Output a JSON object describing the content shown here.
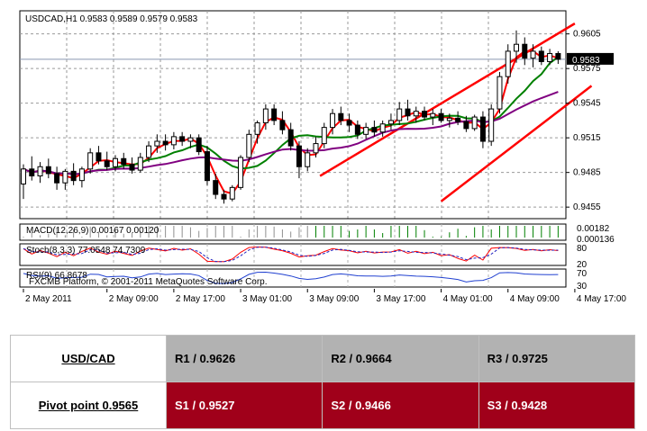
{
  "chart_data": {
    "type": "candlestick",
    "header": "USDCAD,H1  0.9583 0.9589 0.9579 0.9583",
    "current_price_label": "0.9583",
    "current_price": 0.9583,
    "ylim": [
      0.9445,
      0.9625
    ],
    "y_ticks": [
      {
        "v": 0.9605,
        "label": "0.9605"
      },
      {
        "v": 0.9575,
        "label": "0.9575"
      },
      {
        "v": 0.9545,
        "label": "0.9545"
      },
      {
        "v": 0.9515,
        "label": "0.9515"
      },
      {
        "v": 0.9485,
        "label": "0.9485"
      },
      {
        "v": 0.9455,
        "label": "0.9455"
      }
    ],
    "x_ticks": [
      {
        "i": 0,
        "label": "2 May 2011"
      },
      {
        "i": 10,
        "label": "2 May 09:00"
      },
      {
        "i": 18,
        "label": "2 May 17:00"
      },
      {
        "i": 26,
        "label": "3 May 01:00"
      },
      {
        "i": 34,
        "label": "3 May 09:00"
      },
      {
        "i": 42,
        "label": "3 May 17:00"
      },
      {
        "i": 50,
        "label": "4 May 01:00"
      },
      {
        "i": 58,
        "label": "4 May 09:00"
      },
      {
        "i": 66,
        "label": "4 May 17:00"
      }
    ],
    "candles": [
      [
        0.9475,
        0.9492,
        0.9462,
        0.9488
      ],
      [
        0.9488,
        0.9499,
        0.9478,
        0.9482
      ],
      [
        0.9482,
        0.9494,
        0.9476,
        0.949
      ],
      [
        0.949,
        0.9497,
        0.948,
        0.9484
      ],
      [
        0.9484,
        0.949,
        0.947,
        0.9476
      ],
      [
        0.9476,
        0.9488,
        0.947,
        0.9486
      ],
      [
        0.9486,
        0.9493,
        0.9474,
        0.9478
      ],
      [
        0.9478,
        0.949,
        0.9472,
        0.9488
      ],
      [
        0.9488,
        0.9506,
        0.9484,
        0.9502
      ],
      [
        0.9502,
        0.9508,
        0.9492,
        0.9495
      ],
      [
        0.9495,
        0.9503,
        0.9487,
        0.949
      ],
      [
        0.949,
        0.95,
        0.9486,
        0.9497
      ],
      [
        0.9497,
        0.9502,
        0.9488,
        0.9492
      ],
      [
        0.9492,
        0.9498,
        0.9484,
        0.9487
      ],
      [
        0.9487,
        0.9502,
        0.9485,
        0.9498
      ],
      [
        0.9498,
        0.9512,
        0.9494,
        0.9508
      ],
      [
        0.9508,
        0.9518,
        0.9502,
        0.9512
      ],
      [
        0.9512,
        0.9518,
        0.9504,
        0.9509
      ],
      [
        0.9509,
        0.952,
        0.9505,
        0.9516
      ],
      [
        0.9516,
        0.952,
        0.9508,
        0.9512
      ],
      [
        0.9512,
        0.9518,
        0.9506,
        0.9515
      ],
      [
        0.9515,
        0.9518,
        0.95,
        0.9503
      ],
      [
        0.9503,
        0.9508,
        0.9474,
        0.9478
      ],
      [
        0.9478,
        0.9484,
        0.9462,
        0.9466
      ],
      [
        0.9466,
        0.947,
        0.9458,
        0.9462
      ],
      [
        0.9462,
        0.9474,
        0.946,
        0.9472
      ],
      [
        0.9472,
        0.95,
        0.947,
        0.9498
      ],
      [
        0.9498,
        0.9522,
        0.9494,
        0.9518
      ],
      [
        0.9518,
        0.953,
        0.951,
        0.9528
      ],
      [
        0.9528,
        0.9544,
        0.9522,
        0.954
      ],
      [
        0.954,
        0.9544,
        0.9526,
        0.953
      ],
      [
        0.953,
        0.9538,
        0.9518,
        0.9522
      ],
      [
        0.9522,
        0.9528,
        0.9504,
        0.9508
      ],
      [
        0.9508,
        0.9512,
        0.948,
        0.949
      ],
      [
        0.949,
        0.9506,
        0.9486,
        0.9502
      ],
      [
        0.9502,
        0.9516,
        0.9498,
        0.951
      ],
      [
        0.951,
        0.9528,
        0.9506,
        0.9524
      ],
      [
        0.9524,
        0.954,
        0.9518,
        0.9536
      ],
      [
        0.9536,
        0.9542,
        0.9526,
        0.953
      ],
      [
        0.953,
        0.9536,
        0.952,
        0.9526
      ],
      [
        0.9526,
        0.953,
        0.9514,
        0.9518
      ],
      [
        0.9518,
        0.9528,
        0.9514,
        0.9524
      ],
      [
        0.9524,
        0.953,
        0.9516,
        0.952
      ],
      [
        0.952,
        0.953,
        0.9516,
        0.9527
      ],
      [
        0.9527,
        0.9536,
        0.9522,
        0.953
      ],
      [
        0.953,
        0.9546,
        0.9526,
        0.954
      ],
      [
        0.954,
        0.9548,
        0.953,
        0.9534
      ],
      [
        0.9534,
        0.9542,
        0.9528,
        0.9538
      ],
      [
        0.9538,
        0.9542,
        0.953,
        0.9533
      ],
      [
        0.9533,
        0.954,
        0.9526,
        0.9536
      ],
      [
        0.9536,
        0.954,
        0.9528,
        0.953
      ],
      [
        0.953,
        0.9536,
        0.9524,
        0.9532
      ],
      [
        0.9532,
        0.9538,
        0.9526,
        0.9529
      ],
      [
        0.9529,
        0.9534,
        0.952,
        0.9523
      ],
      [
        0.9523,
        0.9535,
        0.9521,
        0.9533
      ],
      [
        0.9533,
        0.9538,
        0.9506,
        0.9512
      ],
      [
        0.9512,
        0.9544,
        0.9508,
        0.954
      ],
      [
        0.954,
        0.9572,
        0.9536,
        0.9568
      ],
      [
        0.9568,
        0.9596,
        0.9562,
        0.959
      ],
      [
        0.959,
        0.9608,
        0.958,
        0.9596
      ],
      [
        0.9596,
        0.9602,
        0.9578,
        0.9584
      ],
      [
        0.9584,
        0.9596,
        0.9576,
        0.959
      ],
      [
        0.959,
        0.9594,
        0.9578,
        0.9581
      ],
      [
        0.9581,
        0.9592,
        0.9578,
        0.9588
      ],
      [
        0.9588,
        0.959,
        0.9579,
        0.9583
      ]
    ],
    "trend_lines": [
      {
        "i1": 35.5,
        "v1": 0.9482,
        "i2": 66,
        "v2": 0.9614
      },
      {
        "i1": 50,
        "v1": 0.946,
        "i2": 68,
        "v2": 0.956
      }
    ],
    "ma_colors": [
      "#ff0000",
      "#008000",
      "#800080"
    ],
    "macd": {
      "label": "MACD(12,26,9) 0.00167 0.00120",
      "ticks": [
        "0.00182",
        "0.000136"
      ]
    },
    "stoch": {
      "label": "Stoch(8,3,3) 77.0548 74.7309",
      "ticks": [
        "80",
        "20"
      ]
    },
    "rsi": {
      "label": "RSI(9) 66.8678",
      "ticks": [
        "70",
        "30"
      ]
    },
    "copyright": "FXCMB Platform, © 2001-2011 MetaQuotes Software Corp."
  },
  "pivot_table": {
    "pair": "USD/CAD",
    "pivot": "Pivot point 0.9565",
    "r1": "R1 / 0.9626",
    "r2": "R2 / 0.9664",
    "r3": "R3 / 0.9725",
    "s1": "S1 / 0.9527",
    "s2": "S2 / 0.9466",
    "s3": "S3 / 0.9428"
  }
}
